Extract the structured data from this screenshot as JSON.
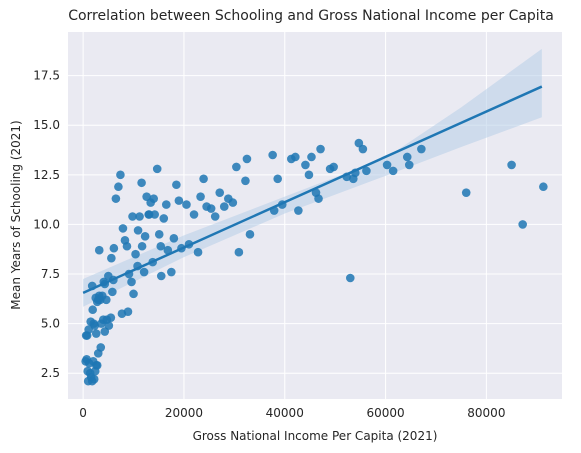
{
  "chart_data": {
    "type": "scatter",
    "title": "Correlation between Schooling and Gross National Income per Capita",
    "xlabel": "Gross National Income Per Capita (2021)",
    "ylabel": "Mean Years of Schooling (2021)",
    "xlim": [
      -3000,
      95000
    ],
    "ylim": [
      1.2,
      19.7
    ],
    "xticks": [
      0,
      20000,
      40000,
      60000,
      80000
    ],
    "xtick_labels": [
      "0",
      "20000",
      "40000",
      "60000",
      "80000"
    ],
    "yticks": [
      2.5,
      5.0,
      7.5,
      10.0,
      12.5,
      15.0,
      17.5
    ],
    "ytick_labels": [
      "2.5",
      "5.0",
      "7.5",
      "10.0",
      "12.5",
      "15.0",
      "17.5"
    ],
    "grid": true,
    "style": "seaborn darkgrid",
    "colors": {
      "background": "#eaeaf2",
      "points": "#1f77b4",
      "line": "#1f77b4",
      "band": "#b7cde8"
    },
    "regression": {
      "x": [
        0,
        91000
      ],
      "y": [
        6.55,
        16.95
      ],
      "ci_upper": [
        [
          0,
          7.25
        ],
        [
          20000,
          9.45
        ],
        [
          40000,
          11.4
        ],
        [
          60000,
          13.35
        ],
        [
          75000,
          15.9
        ],
        [
          91000,
          18.85
        ]
      ],
      "ci_lower": [
        [
          0,
          5.85
        ],
        [
          20000,
          8.35
        ],
        [
          40000,
          10.55
        ],
        [
          60000,
          12.45
        ],
        [
          75000,
          13.9
        ],
        [
          91000,
          15.4
        ]
      ]
    },
    "points": [
      [
        500,
        3.1
      ],
      [
        700,
        3.2
      ],
      [
        900,
        2.6
      ],
      [
        1000,
        2.1
      ],
      [
        1200,
        3.0
      ],
      [
        1400,
        2.5
      ],
      [
        1600,
        2.3
      ],
      [
        1800,
        2.1
      ],
      [
        2000,
        3.1
      ],
      [
        2200,
        2.2
      ],
      [
        2400,
        2.6
      ],
      [
        2600,
        2.9
      ],
      [
        2800,
        2.9
      ],
      [
        3000,
        3.5
      ],
      [
        3500,
        3.8
      ],
      [
        600,
        4.4
      ],
      [
        800,
        4.4
      ],
      [
        1100,
        4.7
      ],
      [
        1500,
        5.1
      ],
      [
        1900,
        5.7
      ],
      [
        2100,
        5.0
      ],
      [
        2300,
        4.9
      ],
      [
        2600,
        4.5
      ],
      [
        2800,
        6.1
      ],
      [
        3000,
        6.2
      ],
      [
        3200,
        6.4
      ],
      [
        3400,
        6.2
      ],
      [
        3600,
        5.0
      ],
      [
        3800,
        6.4
      ],
      [
        4000,
        5.2
      ],
      [
        4300,
        4.6
      ],
      [
        4700,
        5.2
      ],
      [
        5100,
        4.9
      ],
      [
        5500,
        5.3
      ],
      [
        5800,
        6.6
      ],
      [
        4300,
        7.0
      ],
      [
        5000,
        7.4
      ],
      [
        5600,
        8.3
      ],
      [
        6100,
        8.8
      ],
      [
        6500,
        11.3
      ],
      [
        7000,
        11.9
      ],
      [
        7400,
        12.5
      ],
      [
        7900,
        9.8
      ],
      [
        8300,
        9.2
      ],
      [
        8700,
        8.9
      ],
      [
        9100,
        7.5
      ],
      [
        9600,
        7.1
      ],
      [
        10000,
        6.5
      ],
      [
        10400,
        8.5
      ],
      [
        10800,
        7.9
      ],
      [
        11200,
        10.4
      ],
      [
        11700,
        8.9
      ],
      [
        12100,
        7.6
      ],
      [
        12600,
        11.4
      ],
      [
        13000,
        10.5
      ],
      [
        13400,
        11.1
      ],
      [
        13800,
        8.1
      ],
      [
        14200,
        10.5
      ],
      [
        14700,
        12.8
      ],
      [
        15100,
        9.5
      ],
      [
        15500,
        7.4
      ],
      [
        16000,
        10.3
      ],
      [
        16800,
        8.7
      ],
      [
        17500,
        7.6
      ],
      [
        18000,
        9.3
      ],
      [
        18500,
        12.0
      ],
      [
        19500,
        8.8
      ],
      [
        20500,
        11.0
      ],
      [
        21000,
        9.0
      ],
      [
        22000,
        10.5
      ],
      [
        22800,
        8.6
      ],
      [
        23300,
        11.4
      ],
      [
        23900,
        12.3
      ],
      [
        24500,
        10.9
      ],
      [
        25400,
        10.8
      ],
      [
        26200,
        10.4
      ],
      [
        27100,
        11.6
      ],
      [
        28000,
        10.9
      ],
      [
        28800,
        11.3
      ],
      [
        29700,
        11.1
      ],
      [
        30400,
        12.9
      ],
      [
        30900,
        8.6
      ],
      [
        32200,
        12.2
      ],
      [
        32500,
        13.3
      ],
      [
        33100,
        9.5
      ],
      [
        37600,
        13.5
      ],
      [
        37900,
        10.7
      ],
      [
        38600,
        12.3
      ],
      [
        39500,
        11.0
      ],
      [
        41300,
        13.3
      ],
      [
        42100,
        13.4
      ],
      [
        42700,
        10.7
      ],
      [
        44100,
        13.0
      ],
      [
        44800,
        12.5
      ],
      [
        45300,
        13.4
      ],
      [
        46200,
        11.6
      ],
      [
        46700,
        11.3
      ],
      [
        47100,
        13.8
      ],
      [
        49000,
        12.8
      ],
      [
        49700,
        12.9
      ],
      [
        52300,
        12.4
      ],
      [
        53000,
        7.3
      ],
      [
        53600,
        12.3
      ],
      [
        54000,
        12.6
      ],
      [
        54700,
        14.1
      ],
      [
        55500,
        13.8
      ],
      [
        56200,
        12.7
      ],
      [
        60300,
        13.0
      ],
      [
        61500,
        12.7
      ],
      [
        64300,
        13.4
      ],
      [
        64700,
        13.0
      ],
      [
        67100,
        13.8
      ],
      [
        76000,
        11.6
      ],
      [
        85000,
        13.0
      ],
      [
        87200,
        10.0
      ],
      [
        91300,
        11.9
      ],
      [
        1800,
        6.9
      ],
      [
        2500,
        6.3
      ],
      [
        3200,
        8.7
      ],
      [
        4100,
        7.1
      ],
      [
        4600,
        6.2
      ],
      [
        6000,
        7.2
      ],
      [
        7700,
        5.5
      ],
      [
        8900,
        5.6
      ],
      [
        9800,
        10.4
      ],
      [
        10900,
        9.7
      ],
      [
        11600,
        12.1
      ],
      [
        12300,
        9.4
      ],
      [
        13100,
        10.5
      ],
      [
        14000,
        11.3
      ],
      [
        15400,
        8.9
      ],
      [
        16500,
        11.0
      ],
      [
        19000,
        11.2
      ]
    ]
  }
}
